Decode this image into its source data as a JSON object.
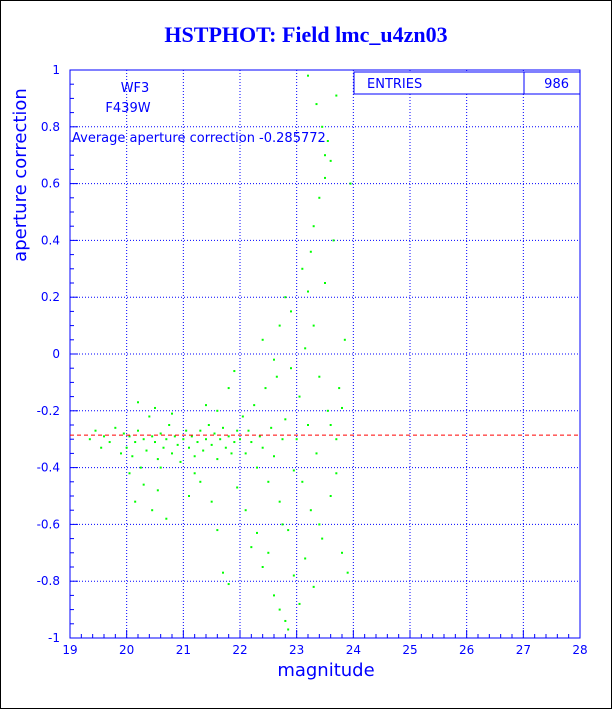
{
  "page_title": "HSTPHOT: Field lmc_u4zn03",
  "chart_data": {
    "type": "scatter",
    "title": "HSTPHOT: Field lmc_u4zn03",
    "xlabel": "magnitude",
    "ylabel": "aperture correction",
    "xlim": [
      19,
      28
    ],
    "ylim": [
      -1,
      1
    ],
    "xticks": [
      "19",
      "20",
      "21",
      "22",
      "23",
      "24",
      "25",
      "26",
      "27",
      "28"
    ],
    "yticks": [
      "-1",
      "-0.8",
      "-0.6",
      "-0.4",
      "-0.2",
      "0",
      "0.2",
      "0.4",
      "0.6",
      "0.8",
      "1"
    ],
    "grid": true,
    "point_color": "#00ff00",
    "axis_color": "#0000ff",
    "avg_line_color": "#ff0000",
    "annotations": {
      "chip": "WF3",
      "filter": "F439W",
      "average_text": "Average aperture correction -0.285772",
      "average_value": -0.285772
    },
    "stats": {
      "entries_label": "ENTRIES",
      "entries_value": "986"
    },
    "series": [
      {
        "points": [
          [
            19.35,
            -0.3
          ],
          [
            19.45,
            -0.27
          ],
          [
            19.55,
            -0.33
          ],
          [
            19.6,
            -0.29
          ],
          [
            19.7,
            -0.31
          ],
          [
            19.8,
            -0.26
          ],
          [
            19.9,
            -0.35
          ],
          [
            19.95,
            -0.28
          ],
          [
            20.0,
            -0.33
          ],
          [
            20.05,
            -0.29
          ],
          [
            20.1,
            -0.36
          ],
          [
            20.15,
            -0.31
          ],
          [
            20.2,
            -0.27
          ],
          [
            20.25,
            -0.4
          ],
          [
            20.3,
            -0.3
          ],
          [
            20.35,
            -0.34
          ],
          [
            20.4,
            -0.22
          ],
          [
            20.45,
            -0.29
          ],
          [
            20.5,
            -0.31
          ],
          [
            20.55,
            -0.37
          ],
          [
            20.6,
            -0.28
          ],
          [
            20.65,
            -0.33
          ],
          [
            20.7,
            -0.3
          ],
          [
            20.75,
            -0.25
          ],
          [
            20.8,
            -0.35
          ],
          [
            20.85,
            -0.29
          ],
          [
            20.9,
            -0.32
          ],
          [
            20.95,
            -0.38
          ],
          [
            20.3,
            -0.46
          ],
          [
            20.45,
            -0.55
          ],
          [
            20.55,
            -0.48
          ],
          [
            20.7,
            -0.58
          ],
          [
            20.2,
            -0.17
          ],
          [
            20.5,
            -0.19
          ],
          [
            20.8,
            -0.21
          ],
          [
            20.15,
            -0.52
          ],
          [
            20.05,
            -0.42
          ],
          [
            20.6,
            -0.4
          ],
          [
            21.0,
            -0.3
          ],
          [
            21.05,
            -0.27
          ],
          [
            21.1,
            -0.33
          ],
          [
            21.15,
            -0.29
          ],
          [
            21.2,
            -0.36
          ],
          [
            21.25,
            -0.31
          ],
          [
            21.3,
            -0.27
          ],
          [
            21.35,
            -0.34
          ],
          [
            21.4,
            -0.3
          ],
          [
            21.45,
            -0.25
          ],
          [
            21.5,
            -0.32
          ],
          [
            21.55,
            -0.28
          ],
          [
            21.6,
            -0.37
          ],
          [
            21.65,
            -0.3
          ],
          [
            21.7,
            -0.26
          ],
          [
            21.75,
            -0.33
          ],
          [
            21.8,
            -0.29
          ],
          [
            21.85,
            -0.35
          ],
          [
            21.9,
            -0.31
          ],
          [
            21.95,
            -0.27
          ],
          [
            21.3,
            -0.45
          ],
          [
            21.5,
            -0.52
          ],
          [
            21.6,
            -0.62
          ],
          [
            21.7,
            -0.77
          ],
          [
            21.8,
            -0.81
          ],
          [
            21.4,
            -0.18
          ],
          [
            21.6,
            -0.2
          ],
          [
            21.8,
            -0.12
          ],
          [
            21.9,
            -0.06
          ],
          [
            21.2,
            -0.42
          ],
          [
            21.1,
            -0.5
          ],
          [
            21.95,
            -0.47
          ],
          [
            22.0,
            -0.3
          ],
          [
            22.05,
            -0.22
          ],
          [
            22.1,
            -0.35
          ],
          [
            22.15,
            -0.27
          ],
          [
            22.2,
            -0.31
          ],
          [
            22.25,
            -0.18
          ],
          [
            22.3,
            -0.4
          ],
          [
            22.35,
            -0.29
          ],
          [
            22.4,
            -0.33
          ],
          [
            22.45,
            -0.12
          ],
          [
            22.5,
            -0.45
          ],
          [
            22.55,
            -0.26
          ],
          [
            22.6,
            -0.36
          ],
          [
            22.65,
            -0.08
          ],
          [
            22.7,
            -0.52
          ],
          [
            22.75,
            -0.3
          ],
          [
            22.8,
            -0.23
          ],
          [
            22.85,
            -0.62
          ],
          [
            22.9,
            -0.05
          ],
          [
            22.95,
            -0.41
          ],
          [
            22.1,
            -0.55
          ],
          [
            22.3,
            -0.63
          ],
          [
            22.5,
            -0.7
          ],
          [
            22.6,
            -0.85
          ],
          [
            22.7,
            -0.9
          ],
          [
            22.8,
            -0.94
          ],
          [
            22.85,
            -0.97
          ],
          [
            22.2,
            -0.68
          ],
          [
            22.4,
            -0.75
          ],
          [
            22.6,
            -0.02
          ],
          [
            22.4,
            0.05
          ],
          [
            22.7,
            0.1
          ],
          [
            22.8,
            0.2
          ],
          [
            22.9,
            0.15
          ],
          [
            22.75,
            -0.6
          ],
          [
            22.95,
            -0.78
          ],
          [
            23.0,
            -0.3
          ],
          [
            23.05,
            -0.15
          ],
          [
            23.1,
            -0.45
          ],
          [
            23.15,
            0.02
          ],
          [
            23.2,
            -0.25
          ],
          [
            23.25,
            -0.55
          ],
          [
            23.3,
            0.1
          ],
          [
            23.35,
            -0.35
          ],
          [
            23.4,
            -0.08
          ],
          [
            23.45,
            -0.65
          ],
          [
            23.5,
            0.25
          ],
          [
            23.55,
            -0.2
          ],
          [
            23.6,
            -0.5
          ],
          [
            23.65,
            0.4
          ],
          [
            23.7,
            -0.3
          ],
          [
            23.75,
            -0.12
          ],
          [
            23.8,
            -0.7
          ],
          [
            23.1,
            0.3
          ],
          [
            23.2,
            0.22
          ],
          [
            23.3,
            0.45
          ],
          [
            23.4,
            0.55
          ],
          [
            23.5,
            0.7
          ],
          [
            23.55,
            0.75
          ],
          [
            23.6,
            0.68
          ],
          [
            23.2,
            0.98
          ],
          [
            23.7,
            0.91
          ],
          [
            23.35,
            0.88
          ],
          [
            23.45,
            0.8
          ],
          [
            23.5,
            0.62
          ],
          [
            23.25,
            0.36
          ],
          [
            23.15,
            -0.72
          ],
          [
            23.3,
            -0.82
          ],
          [
            23.4,
            -0.6
          ],
          [
            23.05,
            -0.88
          ],
          [
            23.6,
            -0.25
          ],
          [
            23.7,
            -0.42
          ],
          [
            23.8,
            -0.19
          ],
          [
            23.9,
            -0.77
          ],
          [
            23.95,
            0.6
          ],
          [
            23.85,
            0.05
          ]
        ]
      }
    ]
  }
}
